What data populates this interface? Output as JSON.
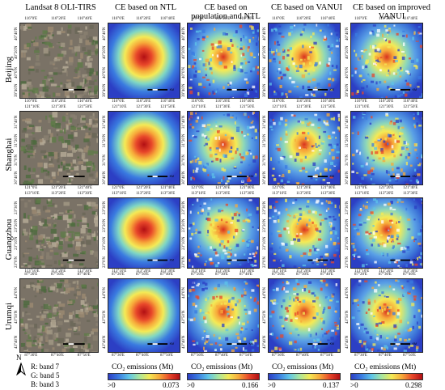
{
  "columns": [
    {
      "key": "landsat",
      "title": "Landsat 8 OLI-TIRS"
    },
    {
      "key": "ntl",
      "title": "CE based on NTL"
    },
    {
      "key": "pop_ntl",
      "title": "CE based on population and NTL"
    },
    {
      "key": "vanui",
      "title": "CE based on VANUI"
    },
    {
      "key": "ivanui",
      "title": "CE based on improved VANUI"
    }
  ],
  "rows": [
    {
      "city": "Beijing",
      "lon_top": [
        "116°0'E",
        "116°20'E",
        "116°40'E"
      ],
      "lon_bottom": [
        "116°0'E",
        "116°20'E",
        "116°40'E"
      ],
      "lat": [
        "40°40'N",
        "40°20'N",
        "40°0'N",
        "39°40'N"
      ]
    },
    {
      "city": "Shanghai",
      "lon_top": [
        "121°10'E",
        "121°30'E",
        "121°50'E"
      ],
      "lon_bottom": [
        "121°0'E",
        "121°20'E",
        "121°40'E"
      ],
      "lat": [
        "31°40'N",
        "31°20'N",
        "31°0'N",
        "30°40'N"
      ]
    },
    {
      "city": "Guangzhou",
      "lon_top": [
        "113°10'E",
        "113°20'E",
        "113°30'E"
      ],
      "lon_bottom": [
        "113°10'E",
        "113°20'E",
        "113°30'E"
      ],
      "lat": [
        "23°30'N",
        "23°20'N",
        "23°10'N",
        "23°0'N"
      ]
    },
    {
      "city": "Urumqi",
      "lon_top": [
        "87°20'E",
        "87°30'E",
        "87°40'E"
      ],
      "lon_bottom": [
        "87°30'E",
        "87°40'E",
        "87°50'E"
      ],
      "lat": [
        "44°0'N",
        "43°50'N",
        "43°40'N"
      ]
    }
  ],
  "scalebar": {
    "ticks": [
      "0",
      "5",
      "10",
      "20"
    ],
    "unit": "KM"
  },
  "colorbars": [
    {
      "title": "CO₂ emissions (Mt)",
      "min": ">0",
      "max": "0.073"
    },
    {
      "title": "CO₂ emissions (Mt)",
      "min": ">0",
      "max": "0.166"
    },
    {
      "title": "CO₂ emissions (Mt)",
      "min": ">0",
      "max": "0.137"
    },
    {
      "title": "CO₂ emissions (Mt)",
      "min": ">0",
      "max": "0.298"
    }
  ],
  "band_legend": {
    "r": "R: band 7",
    "g": "G: band 5",
    "b": "B: band 3"
  },
  "north_label": "N",
  "colors": {
    "low": "#2c3fc4",
    "mid": "#f4ea56",
    "high": "#b20f14",
    "landsat": "#7a7266"
  }
}
